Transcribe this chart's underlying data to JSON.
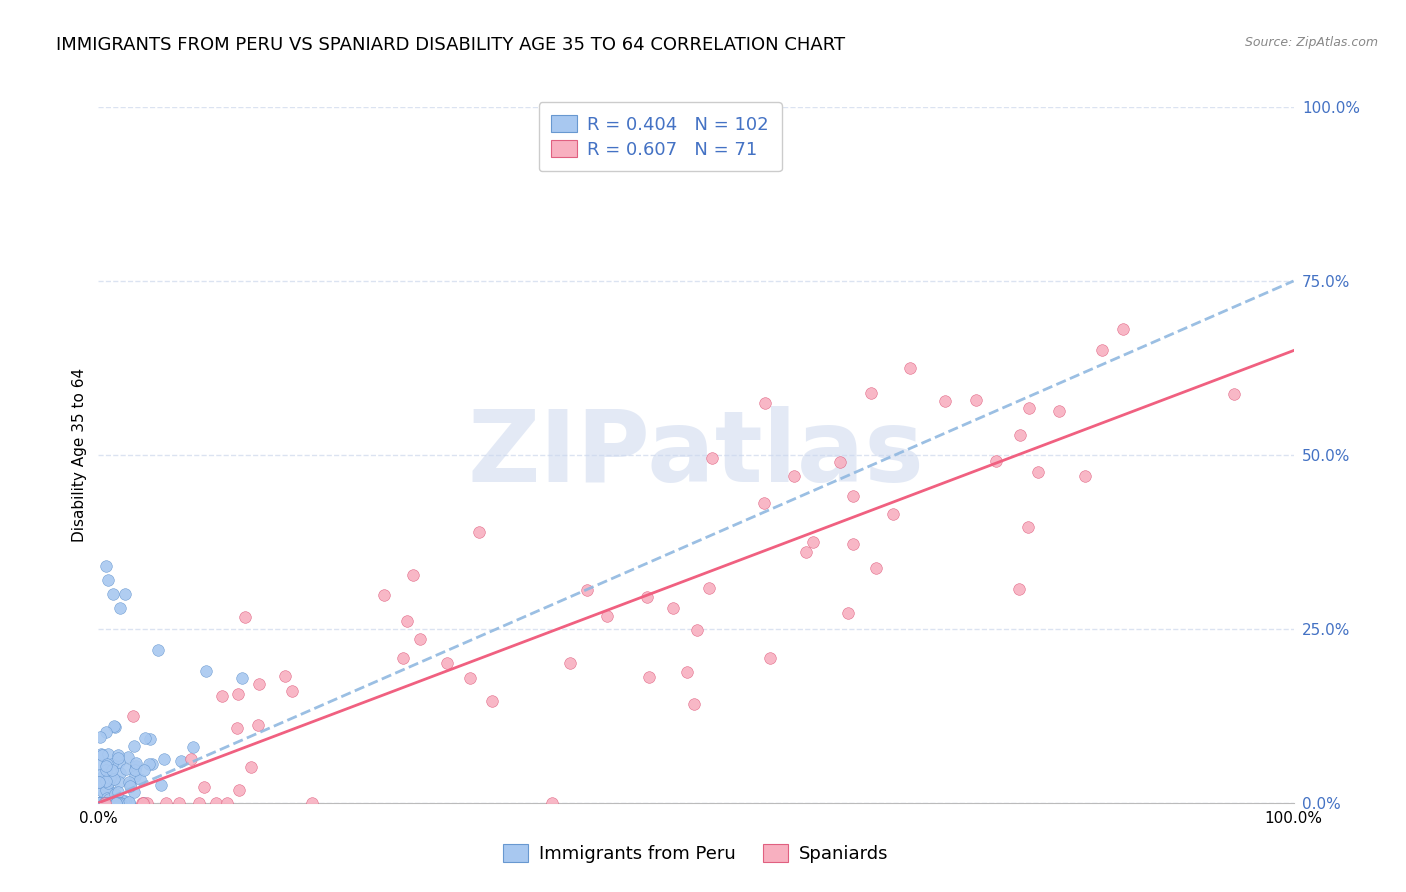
{
  "title": "IMMIGRANTS FROM PERU VS SPANIARD DISABILITY AGE 35 TO 64 CORRELATION CHART",
  "source": "Source: ZipAtlas.com",
  "ylabel": "Disability Age 35 to 64",
  "legend_label1": "Immigrants from Peru",
  "legend_label2": "Spaniards",
  "r1": 0.404,
  "n1": 102,
  "r2": 0.607,
  "n2": 71,
  "blue_color": "#a8c8f0",
  "blue_edge_color": "#6898d0",
  "pink_color": "#f8b0c0",
  "pink_edge_color": "#e06080",
  "blue_line_color": "#90b8e0",
  "pink_line_color": "#f06080",
  "text_blue": "#4472c4",
  "watermark_color": "#ccd8ee",
  "background": "#ffffff",
  "grid_color": "#d8e0f0",
  "title_fontsize": 13,
  "axis_label_fontsize": 11,
  "tick_fontsize": 11,
  "legend_fontsize": 13,
  "source_fontsize": 9,
  "watermark_text": "ZIPatlas",
  "watermark_fontsize": 72,
  "blue_scatter_seed": 10,
  "pink_scatter_seed": 20,
  "xlim": [
    0,
    1.0
  ],
  "ylim": [
    0,
    1.0
  ],
  "yticks": [
    0.0,
    0.25,
    0.5,
    0.75,
    1.0
  ],
  "ytick_labels": [
    "0.0%",
    "25.0%",
    "50.0%",
    "75.0%",
    "100.0%"
  ],
  "xtick_left": "0.0%",
  "xtick_right": "100.0%"
}
